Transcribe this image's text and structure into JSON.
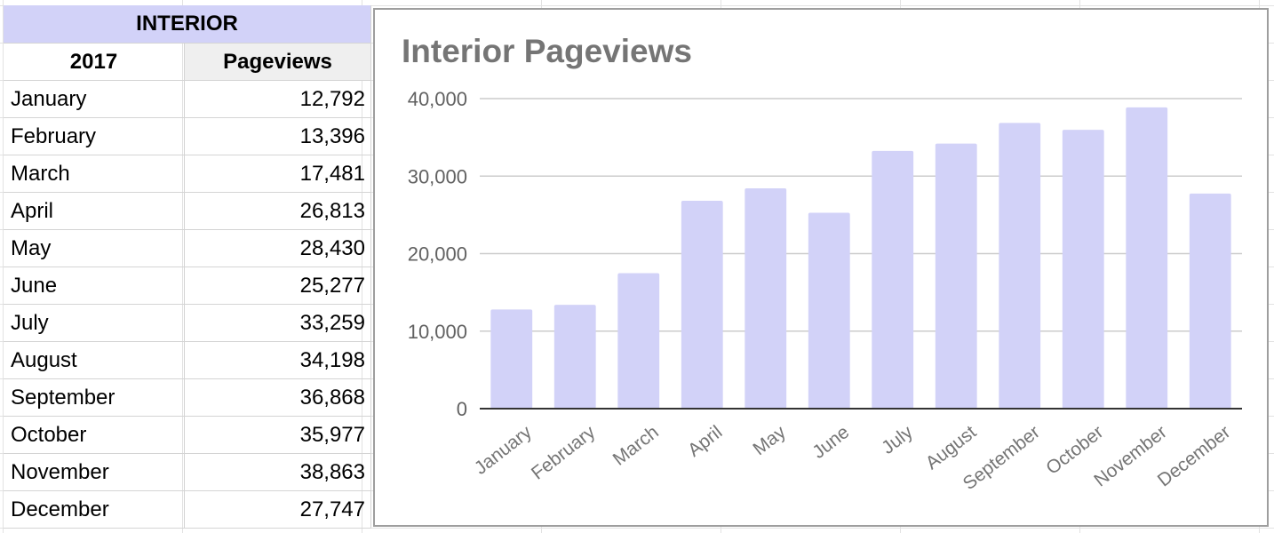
{
  "sheet": {
    "section_header": "INTERIOR",
    "col_year": "2017",
    "col_metric": "Pageviews",
    "rows": [
      {
        "month": "January",
        "value": "12,792"
      },
      {
        "month": "February",
        "value": "13,396"
      },
      {
        "month": "March",
        "value": "17,481"
      },
      {
        "month": "April",
        "value": "26,813"
      },
      {
        "month": "May",
        "value": "28,430"
      },
      {
        "month": "June",
        "value": "25,277"
      },
      {
        "month": "July",
        "value": "33,259"
      },
      {
        "month": "August",
        "value": "34,198"
      },
      {
        "month": "September",
        "value": "36,868"
      },
      {
        "month": "October",
        "value": "35,977"
      },
      {
        "month": "November",
        "value": "38,863"
      },
      {
        "month": "December",
        "value": "27,747"
      }
    ]
  },
  "colors": {
    "header_fill": "#d2d2f8",
    "bar_fill": "#d2d2f8",
    "title_text": "#757575"
  },
  "chart_data": {
    "type": "bar",
    "title": "Interior Pageviews",
    "categories": [
      "January",
      "February",
      "March",
      "April",
      "May",
      "June",
      "July",
      "August",
      "September",
      "October",
      "November",
      "December"
    ],
    "values": [
      12792,
      13396,
      17481,
      26813,
      28430,
      25277,
      33259,
      34198,
      36868,
      35977,
      38863,
      27747
    ],
    "ylim": [
      0,
      40000
    ],
    "yticks": [
      0,
      10000,
      20000,
      30000,
      40000
    ],
    "ytick_labels": [
      "0",
      "10,000",
      "20,000",
      "30,000",
      "40,000"
    ],
    "grid": true,
    "legend": "none"
  }
}
